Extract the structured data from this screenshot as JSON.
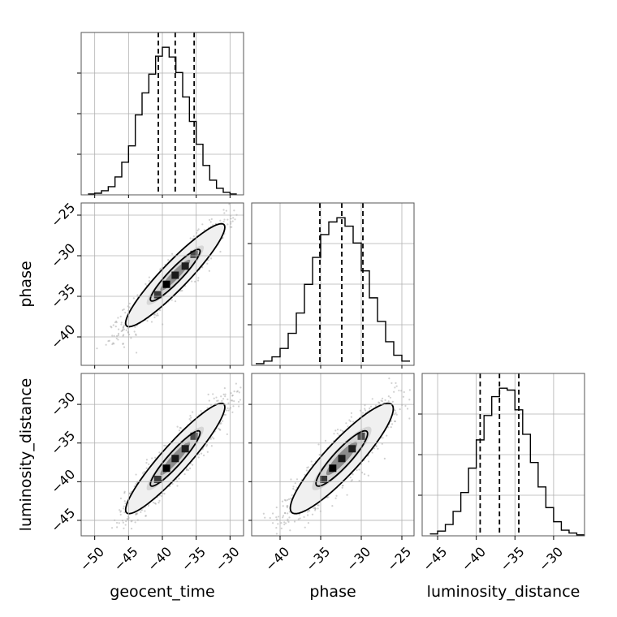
{
  "chart_data": {
    "type": "corner",
    "parameters": [
      "geocent_time",
      "phase",
      "luminosity_distance"
    ],
    "axis_labels": {
      "geocent_time": "geocent_time",
      "phase": "phase",
      "luminosity_distance": "luminosity_distance"
    },
    "ranges": {
      "geocent_time": [
        -52,
        -28
      ],
      "phase": [
        -43.5,
        -23.5
      ],
      "luminosity_distance": [
        -47,
        -26
      ]
    },
    "ticks": {
      "geocent_time": [
        -50,
        -45,
        -40,
        -35,
        -30
      ],
      "phase": [
        -40,
        -35,
        -30,
        -25
      ],
      "luminosity_distance": [
        -45,
        -40,
        -35,
        -30
      ]
    },
    "tick_labels": {
      "geocent_time": [
        "−50",
        "−45",
        "−40",
        "−35",
        "−30"
      ],
      "phase": [
        "−40",
        "−35",
        "−30",
        "−25"
      ],
      "luminosity_distance": [
        "−45",
        "−40",
        "−35",
        "−30"
      ]
    },
    "quantiles": {
      "geocent_time": [
        -40.6,
        -38.1,
        -35.3
      ],
      "phase": [
        -35.1,
        -32.4,
        -29.8
      ],
      "luminosity_distance": [
        -39.5,
        -37.0,
        -34.5
      ]
    },
    "histograms": {
      "geocent_time": {
        "edges": [
          -51,
          -50,
          -49,
          -48,
          -47,
          -46,
          -45,
          -44,
          -43,
          -42,
          -41,
          -40,
          -39,
          -38,
          -37,
          -36,
          -35,
          -34,
          -33,
          -32,
          -31,
          -30,
          -29
        ],
        "counts": [
          1,
          2,
          5,
          10,
          22,
          40,
          60,
          98,
          125,
          148,
          170,
          181,
          169,
          150,
          120,
          90,
          62,
          36,
          18,
          8,
          3,
          1
        ]
      },
      "phase": {
        "edges": [
          -43,
          -42,
          -41,
          -40,
          -39,
          -38,
          -37,
          -36,
          -35,
          -34,
          -33,
          -32,
          -31,
          -30,
          -29,
          -28,
          -27,
          -26,
          -25,
          -24
        ],
        "counts": [
          2,
          5,
          10,
          20,
          38,
          62,
          96,
          128,
          155,
          170,
          175,
          165,
          145,
          112,
          80,
          52,
          28,
          12,
          5
        ]
      },
      "luminosity_distance": {
        "edges": [
          -46,
          -45,
          -44,
          -43,
          -42,
          -41,
          -40,
          -39,
          -38,
          -37,
          -36,
          -35,
          -34,
          -33,
          -32,
          -31,
          -30,
          -29,
          -28,
          -27,
          -26
        ],
        "counts": [
          2,
          5,
          12,
          26,
          46,
          72,
          102,
          128,
          148,
          157,
          155,
          134,
          108,
          78,
          52,
          30,
          15,
          6,
          3,
          1
        ]
      }
    },
    "pairs": [
      {
        "x": "geocent_time",
        "y": "phase",
        "mean": [
          -38.1,
          -32.4
        ],
        "sd": [
          3.7,
          3.2
        ],
        "corr": 0.93
      },
      {
        "x": "geocent_time",
        "y": "luminosity_distance",
        "mean": [
          -38.1,
          -37.0
        ],
        "sd": [
          3.7,
          3.6
        ],
        "corr": 0.93
      },
      {
        "x": "phase",
        "y": "luminosity_distance",
        "mean": [
          -32.4,
          -37.0
        ],
        "sd": [
          3.2,
          3.6
        ],
        "corr": 0.9
      }
    ],
    "contour_levels": [
      0.39,
      0.86
    ],
    "grid": true,
    "line_color": "#000000",
    "point_color": "#9a9a9a",
    "grid_color": "#b0b0b0"
  }
}
